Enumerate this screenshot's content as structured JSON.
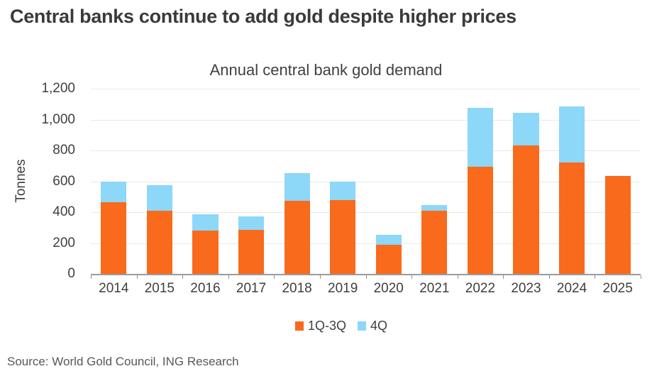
{
  "header": {
    "title": "Central banks continue to add gold despite higher prices"
  },
  "chart": {
    "title": "Annual central bank gold demand",
    "ylabel": "Tonnes"
  },
  "chart_data": {
    "type": "bar",
    "stacked": true,
    "title": "Annual central bank gold demand",
    "xlabel": "",
    "ylabel": "Tonnes",
    "categories": [
      "2014",
      "2015",
      "2016",
      "2017",
      "2018",
      "2019",
      "2020",
      "2021",
      "2022",
      "2023",
      "2024",
      "2025"
    ],
    "series": [
      {
        "name": "1Q-3Q",
        "color": "#F96A1D",
        "values": [
          465,
          410,
          280,
          283,
          475,
          480,
          190,
          410,
          695,
          832,
          722,
          633
        ]
      },
      {
        "name": "4Q",
        "color": "#8DD7F9",
        "values": [
          135,
          167,
          105,
          90,
          180,
          120,
          65,
          35,
          383,
          214,
          365,
          0
        ]
      }
    ],
    "totals": [
      600,
      577,
      385,
      373,
      655,
      600,
      255,
      445,
      1078,
      1046,
      1087,
      633
    ],
    "ylim": [
      0,
      1200
    ],
    "yticks": [
      {
        "value": 0,
        "label": "0"
      },
      {
        "value": 200,
        "label": "200"
      },
      {
        "value": 400,
        "label": "400"
      },
      {
        "value": 600,
        "label": "600"
      },
      {
        "value": 800,
        "label": "800"
      },
      {
        "value": 1000,
        "label": "1,000"
      },
      {
        "value": 1200,
        "label": "1,200"
      }
    ],
    "grid": true,
    "legend_position": "bottom"
  },
  "footer": {
    "source": "Source: World Gold Council, ING Research"
  }
}
